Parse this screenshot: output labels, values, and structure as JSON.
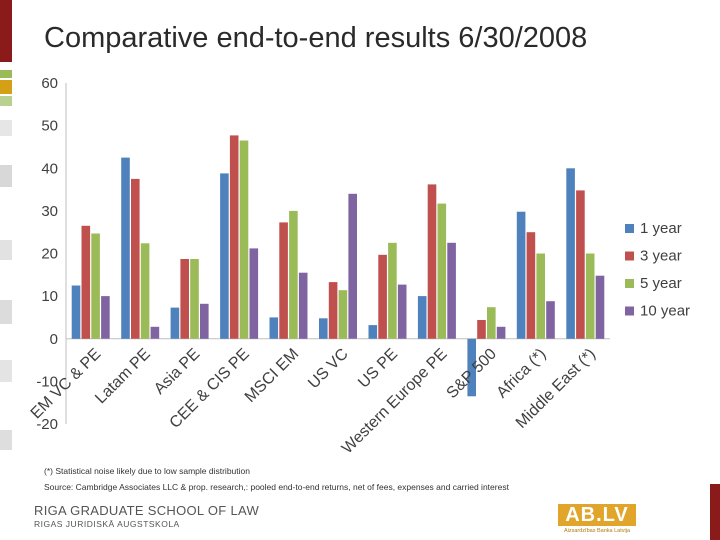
{
  "slide": {
    "title": "Comparative end-to-end results 6/30/2008",
    "footnote1": "(*) Statistical noise likely due to low sample distribution",
    "footnote2": "Source: Cambridge Associates LLC & prop. research,: pooled end-to-end returns, net of fees, expenses and carried interest",
    "school_name": "RIGA GRADUATE SCHOOL OF LAW",
    "school_name_local": "RIGAS JURIDISKĀ AUGSTSKOLA",
    "logo_text": "AB.LV",
    "logo_subtext": "Aizsardzības Banka Latvija",
    "accent_color": "#8b1a1a",
    "logo_color": "#e0a52a"
  },
  "chart_data": {
    "type": "bar",
    "categories": [
      "EM VC & PE",
      "Latam PE",
      "Asia PE",
      "CEE & CIS PE",
      "MSCI EM",
      "US VC",
      "US PE",
      "Western Europe PE",
      "S&P 500",
      "Africa (*)",
      "Middle East (*)"
    ],
    "series": [
      {
        "name": "1 year",
        "color": "#4f81bd",
        "values": [
          12.5,
          42.5,
          7.3,
          38.8,
          5,
          4.8,
          3.2,
          10,
          -13.5,
          29.8,
          40
        ]
      },
      {
        "name": "3 year",
        "color": "#c0504d",
        "values": [
          26.5,
          37.5,
          18.7,
          47.7,
          27.3,
          13.3,
          19.7,
          36.2,
          4.4,
          25,
          34.8
        ]
      },
      {
        "name": "5 year",
        "color": "#9bbb59",
        "values": [
          24.7,
          22.4,
          18.7,
          46.5,
          30,
          11.4,
          22.5,
          31.7,
          7.4,
          20,
          20
        ]
      },
      {
        "name": "10 year",
        "color": "#8064a2",
        "values": [
          10,
          2.8,
          8.2,
          21.2,
          15.5,
          34,
          12.7,
          22.5,
          2.8,
          8.8,
          14.8
        ]
      }
    ],
    "yticks": [
      -20,
      -10,
      0,
      10,
      20,
      30,
      40,
      50,
      60
    ],
    "ylim": [
      -20,
      60
    ],
    "grid": false,
    "legend_position": "right"
  }
}
